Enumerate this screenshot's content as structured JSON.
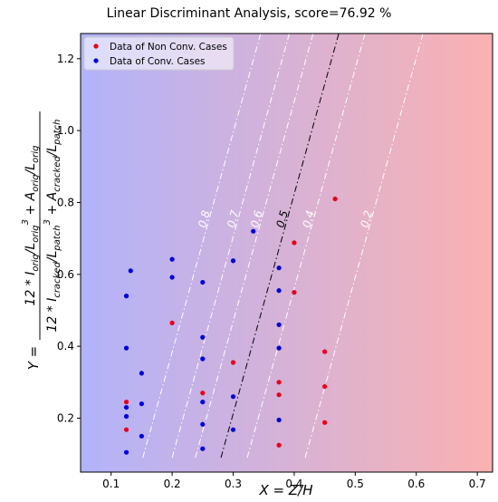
{
  "chart_data": {
    "type": "scatter",
    "title": "Linear Discriminant Analysis, score=76.92 %",
    "xlabel": "X = Z/H",
    "ylabel": "Y = (12*I_orig/L_orig^3 + A_orig/L_orig) / (12*I_cracked/L_cracked^3 + A_cracked/L_patch)",
    "xlim": [
      0.05,
      0.725
    ],
    "ylim": [
      0.05,
      1.27
    ],
    "x_ticks": [
      0.1,
      0.2,
      0.3,
      0.4,
      0.5,
      0.6,
      0.7
    ],
    "y_ticks": [
      0.2,
      0.4,
      0.6,
      0.8,
      1.0,
      1.2
    ],
    "legend_position": "top-left",
    "background_gradient": {
      "left_color": "#b2b3fb",
      "right_color": "#fbb1b1"
    },
    "contours": [
      {
        "label": "0.8",
        "color": "#ffffff",
        "line": [
          [
            0.152,
            0.09
          ],
          [
            0.345,
            1.27
          ]
        ]
      },
      {
        "label": "0.7",
        "color": "#ffffff",
        "line": [
          [
            0.2,
            0.09
          ],
          [
            0.392,
            1.27
          ]
        ]
      },
      {
        "label": "0.6",
        "color": "#ffffff",
        "line": [
          [
            0.238,
            0.09
          ],
          [
            0.431,
            1.27
          ]
        ]
      },
      {
        "label": "0.5",
        "color": "#000000",
        "line": [
          [
            0.28,
            0.09
          ],
          [
            0.473,
            1.27
          ]
        ]
      },
      {
        "label": "0.4",
        "color": "#ffffff",
        "line": [
          [
            0.323,
            0.09
          ],
          [
            0.516,
            1.27
          ]
        ]
      },
      {
        "label": "0.2",
        "color": "#ffffff",
        "line": [
          [
            0.418,
            0.09
          ],
          [
            0.611,
            1.27
          ]
        ]
      }
    ],
    "series": [
      {
        "name": "Data of Non Conv. Cases",
        "color": "#e8001a",
        "points": [
          [
            0.125,
            0.245
          ],
          [
            0.125,
            0.168
          ],
          [
            0.2,
            0.465
          ],
          [
            0.25,
            0.27
          ],
          [
            0.3,
            0.355
          ],
          [
            0.375,
            0.3
          ],
          [
            0.375,
            0.265
          ],
          [
            0.375,
            0.125
          ],
          [
            0.4,
            0.688
          ],
          [
            0.4,
            0.55
          ],
          [
            0.45,
            0.385
          ],
          [
            0.45,
            0.288
          ],
          [
            0.45,
            0.188
          ],
          [
            0.467,
            0.81
          ]
        ]
      },
      {
        "name": "Data of Conv. Cases",
        "color": "#0000dd",
        "points": [
          [
            0.125,
            0.54
          ],
          [
            0.125,
            0.395
          ],
          [
            0.125,
            0.23
          ],
          [
            0.125,
            0.205
          ],
          [
            0.125,
            0.105
          ],
          [
            0.132,
            0.61
          ],
          [
            0.15,
            0.325
          ],
          [
            0.15,
            0.24
          ],
          [
            0.15,
            0.15
          ],
          [
            0.2,
            0.642
          ],
          [
            0.2,
            0.592
          ],
          [
            0.25,
            0.578
          ],
          [
            0.25,
            0.425
          ],
          [
            0.25,
            0.365
          ],
          [
            0.25,
            0.245
          ],
          [
            0.25,
            0.183
          ],
          [
            0.25,
            0.115
          ],
          [
            0.3,
            0.638
          ],
          [
            0.3,
            0.26
          ],
          [
            0.3,
            0.168
          ],
          [
            0.333,
            0.72
          ],
          [
            0.375,
            0.618
          ],
          [
            0.375,
            0.555
          ],
          [
            0.375,
            0.46
          ],
          [
            0.375,
            0.395
          ],
          [
            0.375,
            0.195
          ]
        ]
      }
    ]
  }
}
